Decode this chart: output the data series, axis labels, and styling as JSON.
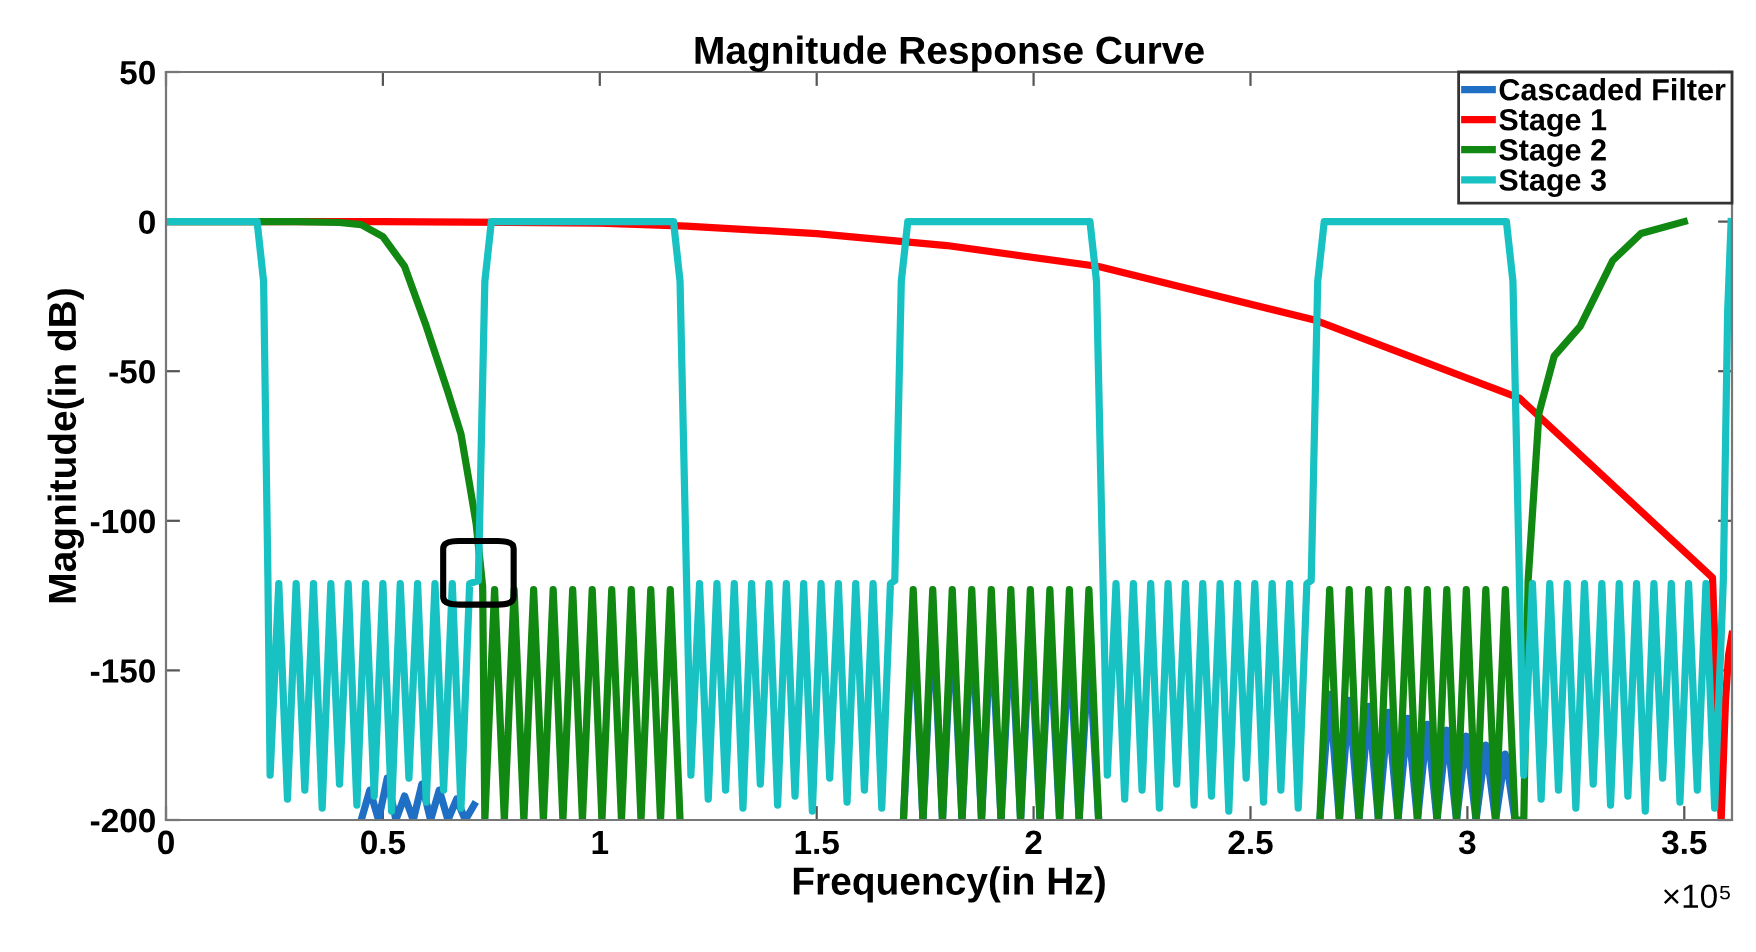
{
  "chart_data": {
    "type": "line",
    "title": "Magnitude Response Curve",
    "xlabel": "Frequency(in Hz)",
    "ylabel": "Magnitude(in dB)",
    "xlim": [
      0,
      3.61
    ],
    "ylim": [
      -200,
      50
    ],
    "xticks": [
      0,
      0.5,
      1,
      1.5,
      2,
      2.5,
      3,
      3.5
    ],
    "yticks": [
      -200,
      -150,
      -100,
      -50,
      0,
      50
    ],
    "annotations": [
      "×10⁵"
    ],
    "grid": false,
    "legend": "top right",
    "line_style": "solid",
    "marker": "none",
    "series": [
      {
        "name": "Cascaded Filter",
        "color": "#1f6fc4",
        "x": [
          0.45,
          0.47,
          0.49,
          0.51,
          0.53,
          0.55,
          0.57,
          0.59,
          0.61,
          0.63,
          0.65,
          0.67,
          0.69,
          0.71,
          0.72,
          1.7,
          1.7225,
          1.745,
          1.7675,
          1.79,
          1.8125,
          1.835,
          1.8575,
          1.88,
          1.9025,
          1.925,
          1.9475,
          1.97,
          1.9925,
          2.015,
          2.0375,
          2.06,
          2.0825,
          2.105,
          2.1275,
          2.15,
          2.16,
          2.66,
          2.6825,
          2.705,
          2.7275,
          2.75,
          2.7725,
          2.795,
          2.8175,
          2.84,
          2.8625,
          2.885,
          2.9075,
          2.93,
          2.9525,
          2.975,
          2.9975,
          3.02,
          3.0425,
          3.065,
          3.0875,
          3.11
        ],
        "values": [
          -200,
          -190,
          -200,
          -186,
          -200,
          -192,
          -200,
          -188,
          -200,
          -190,
          -200,
          -193,
          -200,
          -195,
          null,
          -200,
          -131,
          -200,
          -131,
          -200,
          -132,
          -200,
          -133,
          -200,
          -134,
          -200,
          -135,
          -200,
          -136,
          -200,
          -138,
          -200,
          -140,
          -200,
          -143,
          -200,
          null,
          -200,
          -158,
          -200,
          -160,
          -200,
          -162,
          -200,
          -164,
          -200,
          -166,
          -200,
          -168,
          -200,
          -170,
          -200,
          -172,
          -200,
          -175,
          -200,
          -178,
          -200
        ]
      },
      {
        "name": "Stage 1",
        "color": "#ff0000",
        "x": [
          0,
          0.5,
          1.0,
          1.2,
          1.5,
          1.8,
          2.15,
          2.65,
          3.12,
          3.32,
          3.565,
          3.585,
          3.595,
          3.602,
          3.61
        ],
        "values": [
          0,
          0,
          -0.5,
          -1.5,
          -4,
          -8,
          -15,
          -33,
          -59,
          -86,
          -119,
          -200,
          -160,
          -145,
          -138
        ]
      },
      {
        "name": "Stage 2",
        "color": "#118811",
        "x": [
          0,
          0.3,
          0.4,
          0.45,
          0.5,
          0.55,
          0.6,
          0.65,
          0.68,
          0.7,
          0.715,
          0.73,
          0.735,
          0.7575,
          0.78,
          0.8025,
          0.825,
          0.8475,
          0.87,
          0.8925,
          0.915,
          0.9375,
          0.96,
          0.9825,
          1.005,
          1.0275,
          1.05,
          1.0725,
          1.095,
          1.1175,
          1.14,
          1.1625,
          1.185,
          1.195,
          1.7,
          1.7225,
          1.745,
          1.7675,
          1.79,
          1.8125,
          1.835,
          1.8575,
          1.88,
          1.9025,
          1.925,
          1.9475,
          1.97,
          1.9925,
          2.015,
          2.0375,
          2.06,
          2.0825,
          2.105,
          2.1275,
          2.15,
          2.16,
          2.66,
          2.6825,
          2.705,
          2.7275,
          2.75,
          2.7725,
          2.795,
          2.8175,
          2.84,
          2.8625,
          2.885,
          2.9075,
          2.93,
          2.9525,
          2.975,
          2.9975,
          3.02,
          3.0425,
          3.065,
          3.0875,
          3.11,
          3.13,
          3.14,
          3.165,
          3.2,
          3.26,
          3.335,
          3.4,
          3.5
        ],
        "values": [
          0,
          0,
          -0.3,
          -1,
          -5,
          -15,
          -35,
          -57,
          -71,
          -88,
          -101,
          -122,
          -200,
          -123,
          -200,
          -123,
          -200,
          -123,
          -200,
          -123,
          -200,
          -123,
          -200,
          -123,
          -200,
          -123,
          -200,
          -123,
          -200,
          -123,
          -200,
          -123,
          -200,
          null,
          -200,
          -123,
          -200,
          -123,
          -200,
          -123,
          -200,
          -123,
          -200,
          -123,
          -200,
          -123,
          -200,
          -123,
          -200,
          -123,
          -200,
          -123,
          -200,
          -123,
          -200,
          null,
          -200,
          -123,
          -200,
          -123,
          -200,
          -123,
          -200,
          -123,
          -200,
          -123,
          -200,
          -123,
          -200,
          -123,
          -200,
          -123,
          -200,
          -123,
          -200,
          -123,
          -200,
          -200,
          -120,
          -64,
          -45,
          -35,
          -13,
          -4,
          0
        ]
      },
      {
        "name": "Stage 3",
        "color": "#19c2c2",
        "x": [
          0,
          0.21,
          0.225,
          0.235,
          0.24,
          0.26,
          0.28,
          0.3,
          0.32,
          0.34,
          0.36,
          0.38,
          0.4,
          0.42,
          0.44,
          0.46,
          0.48,
          0.5,
          0.52,
          0.54,
          0.56,
          0.58,
          0.6,
          0.62,
          0.64,
          0.66,
          0.68,
          0.7,
          0.72,
          0.735,
          0.75,
          1.17,
          1.185,
          1.2,
          1.21,
          1.23,
          1.25,
          1.27,
          1.29,
          1.31,
          1.33,
          1.35,
          1.37,
          1.39,
          1.41,
          1.43,
          1.45,
          1.47,
          1.49,
          1.51,
          1.53,
          1.55,
          1.57,
          1.59,
          1.61,
          1.63,
          1.65,
          1.67,
          1.68,
          1.695,
          1.71,
          2.13,
          2.145,
          2.16,
          2.17,
          2.19,
          2.21,
          2.23,
          2.25,
          2.27,
          2.29,
          2.31,
          2.33,
          2.35,
          2.37,
          2.39,
          2.41,
          2.43,
          2.45,
          2.47,
          2.49,
          2.51,
          2.53,
          2.55,
          2.57,
          2.59,
          2.61,
          2.63,
          2.64,
          2.655,
          2.67,
          3.09,
          3.105,
          3.12,
          3.13,
          3.15,
          3.17,
          3.19,
          3.21,
          3.23,
          3.25,
          3.27,
          3.29,
          3.31,
          3.33,
          3.35,
          3.37,
          3.39,
          3.41,
          3.43,
          3.45,
          3.47,
          3.49,
          3.51,
          3.53,
          3.55,
          3.57,
          3.59,
          3.6,
          3.608
        ],
        "values": [
          0,
          0,
          -20,
          -120,
          -185,
          -121,
          -193,
          -121,
          -190,
          -121,
          -196,
          -121,
          -188,
          -121,
          -195,
          -121,
          -192,
          -121,
          -197,
          -121,
          -186,
          -121,
          -194,
          -121,
          -190,
          -121,
          -196,
          -121,
          -120,
          -20,
          0,
          0,
          -20,
          -120,
          -185,
          -121,
          -193,
          -121,
          -190,
          -121,
          -196,
          -121,
          -188,
          -121,
          -195,
          -121,
          -192,
          -121,
          -197,
          -121,
          -186,
          -121,
          -194,
          -121,
          -190,
          -121,
          -196,
          -121,
          -120,
          -20,
          0,
          0,
          -20,
          -120,
          -185,
          -121,
          -193,
          -121,
          -190,
          -121,
          -196,
          -121,
          -188,
          -121,
          -195,
          -121,
          -192,
          -121,
          -197,
          -121,
          -186,
          -121,
          -194,
          -121,
          -190,
          -121,
          -196,
          -121,
          -120,
          -20,
          0,
          0,
          -20,
          -120,
          -185,
          -121,
          -193,
          -121,
          -190,
          -121,
          -196,
          -121,
          -188,
          -121,
          -195,
          -121,
          -192,
          -121,
          -197,
          -121,
          -186,
          -121,
          -194,
          -121,
          -190,
          -121,
          -196,
          -120,
          -30,
          0
        ]
      }
    ]
  }
}
